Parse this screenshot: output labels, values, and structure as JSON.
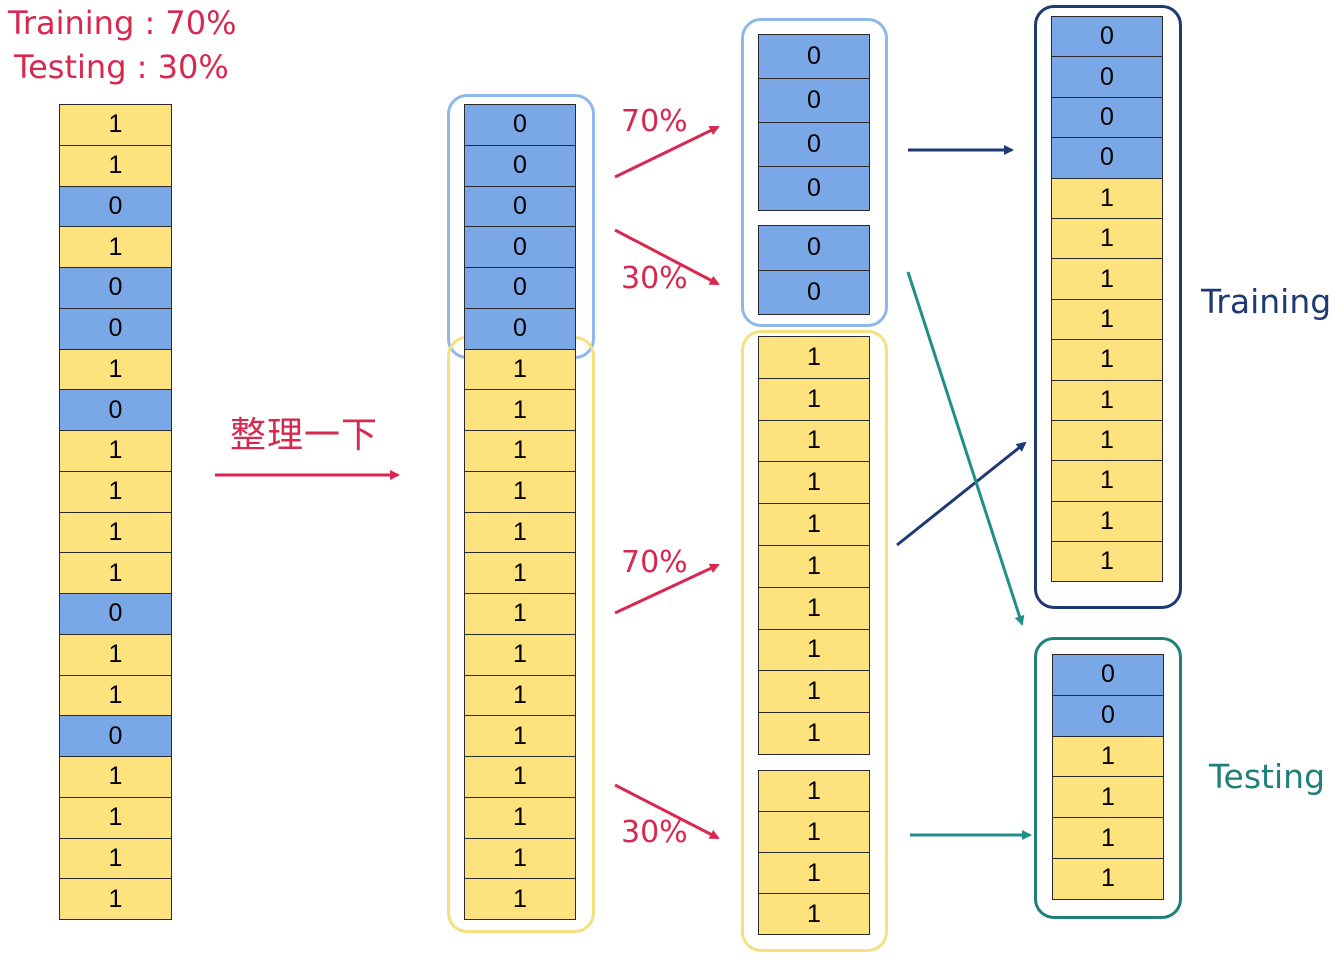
{
  "header": {
    "training_ratio": "Training : 70%",
    "testing_ratio": "Testing : 30%"
  },
  "columns": {
    "original": [
      "1",
      "1",
      "0",
      "1",
      "0",
      "0",
      "1",
      "0",
      "1",
      "1",
      "1",
      "1",
      "0",
      "1",
      "1",
      "0",
      "1",
      "1",
      "1",
      "1"
    ],
    "sorted": [
      "0",
      "0",
      "0",
      "0",
      "0",
      "0",
      "1",
      "1",
      "1",
      "1",
      "1",
      "1",
      "1",
      "1",
      "1",
      "1",
      "1",
      "1",
      "1",
      "1"
    ],
    "zeros_train": [
      "0",
      "0",
      "0",
      "0"
    ],
    "zeros_test": [
      "0",
      "0"
    ],
    "ones_train": [
      "1",
      "1",
      "1",
      "1",
      "1",
      "1",
      "1",
      "1",
      "1",
      "1"
    ],
    "ones_test": [
      "1",
      "1",
      "1",
      "1"
    ],
    "final_train": [
      "0",
      "0",
      "0",
      "0",
      "1",
      "1",
      "1",
      "1",
      "1",
      "1",
      "1",
      "1",
      "1",
      "1"
    ],
    "final_test": [
      "0",
      "0",
      "1",
      "1",
      "1",
      "1"
    ]
  },
  "labels": {
    "sort_step": "整理一下",
    "pct_70_top": "70%",
    "pct_30_top": "30%",
    "pct_70_bottom": "70%",
    "pct_30_bottom": "30%",
    "training": "Training",
    "testing": "Testing"
  },
  "colors": {
    "zero_cell": "#7aa8e6",
    "one_cell": "#fde27d",
    "accent_red": "#d9284f",
    "navy": "#1f3a73",
    "teal": "#1f7f7a",
    "zero_group_border": "#8fb8ea",
    "one_group_border": "#f6df7f"
  }
}
